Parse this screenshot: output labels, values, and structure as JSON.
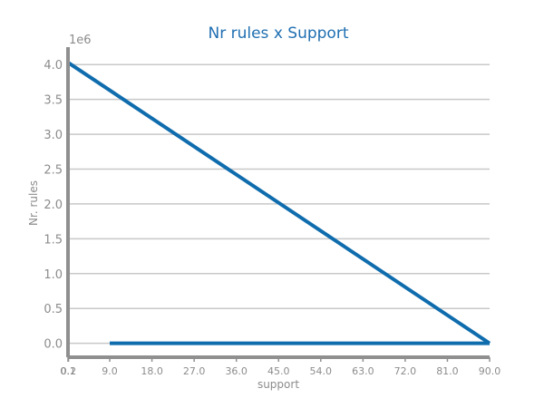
{
  "colors": {
    "title": "#1f6fb2",
    "series": "#0f6cad",
    "axis": "#8f8f8f",
    "grid": "#c8c8c8",
    "text": "#8c8c8c"
  },
  "chart_data": {
    "type": "line",
    "title": "Nr rules x Support",
    "xlabel": "support",
    "ylabel": "Nr. rules",
    "y_offset_label": "1e6",
    "x_tick_labels": [
      "0.1",
      "0.2",
      "9.0",
      "18.0",
      "27.0",
      "36.0",
      "45.0",
      "54.0",
      "63.0",
      "72.0",
      "81.0",
      "90.0"
    ],
    "y_tick_labels": [
      "0.0",
      "0.5",
      "1.0",
      "1.5",
      "2.0",
      "2.5",
      "3.0",
      "3.5",
      "4.0"
    ],
    "xlim": [
      0.1,
      90.0
    ],
    "ylim": [
      -0.2,
      4.25
    ],
    "grid": true,
    "series": [
      {
        "x": [
          0.1,
          90.0
        ],
        "y": [
          4.03,
          0.0
        ]
      },
      {
        "x": [
          9.0,
          90.0
        ],
        "y": [
          0.0,
          0.0
        ]
      }
    ]
  }
}
